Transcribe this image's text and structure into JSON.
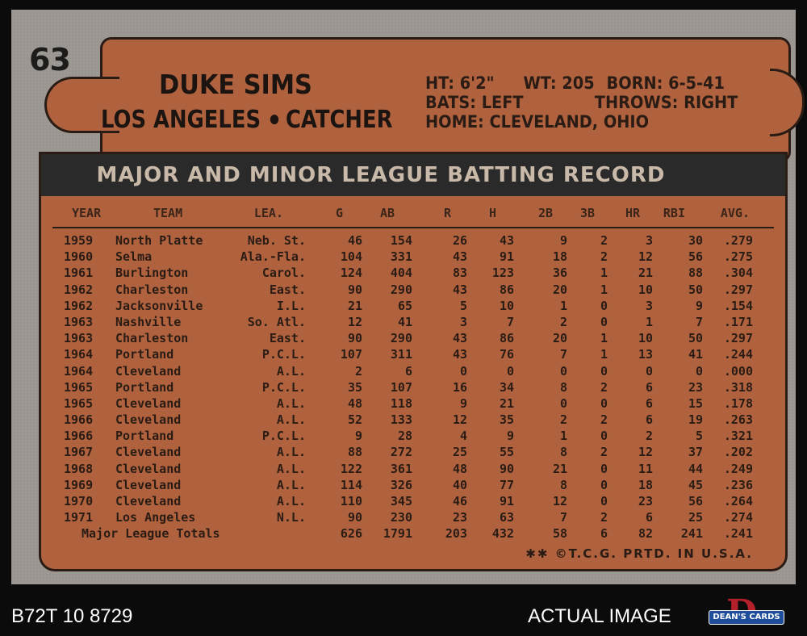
{
  "card": {
    "number": "63",
    "player_name": "DUKE SIMS",
    "team": "LOS ANGELES",
    "position": "CATCHER",
    "bio": {
      "height": "HT: 6'2\"",
      "weight": "WT: 205",
      "born": "BORN: 6-5-41",
      "bats": "BATS: LEFT",
      "throws": "THROWS: RIGHT",
      "home": "HOME: CLEVELAND, OHIO"
    },
    "record_title": "MAJOR AND MINOR LEAGUE BATTING RECORD",
    "columns": [
      "YEAR",
      "TEAM",
      "LEA.",
      "G",
      "AB",
      "R",
      "H",
      "2B",
      "3B",
      "HR",
      "RBI",
      "AVG."
    ],
    "rows": [
      [
        "1959",
        "North Platte",
        "Neb. St.",
        "46",
        "154",
        "26",
        "43",
        "9",
        "2",
        "3",
        "30",
        ".279"
      ],
      [
        "1960",
        "Selma",
        "Ala.-Fla.",
        "104",
        "331",
        "43",
        "91",
        "18",
        "2",
        "12",
        "56",
        ".275"
      ],
      [
        "1961",
        "Burlington",
        "Carol.",
        "124",
        "404",
        "83",
        "123",
        "36",
        "1",
        "21",
        "88",
        ".304"
      ],
      [
        "1962",
        "Charleston",
        "East.",
        "90",
        "290",
        "43",
        "86",
        "20",
        "1",
        "10",
        "50",
        ".297"
      ],
      [
        "1962",
        "Jacksonville",
        "I.L.",
        "21",
        "65",
        "5",
        "10",
        "1",
        "0",
        "3",
        "9",
        ".154"
      ],
      [
        "1963",
        "Nashville",
        "So. Atl.",
        "12",
        "41",
        "3",
        "7",
        "2",
        "0",
        "1",
        "7",
        ".171"
      ],
      [
        "1963",
        "Charleston",
        "East.",
        "90",
        "290",
        "43",
        "86",
        "20",
        "1",
        "10",
        "50",
        ".297"
      ],
      [
        "1964",
        "Portland",
        "P.C.L.",
        "107",
        "311",
        "43",
        "76",
        "7",
        "1",
        "13",
        "41",
        ".244"
      ],
      [
        "1964",
        "Cleveland",
        "A.L.",
        "2",
        "6",
        "0",
        "0",
        "0",
        "0",
        "0",
        "0",
        ".000"
      ],
      [
        "1965",
        "Portland",
        "P.C.L.",
        "35",
        "107",
        "16",
        "34",
        "8",
        "2",
        "6",
        "23",
        ".318"
      ],
      [
        "1965",
        "Cleveland",
        "A.L.",
        "48",
        "118",
        "9",
        "21",
        "0",
        "0",
        "6",
        "15",
        ".178"
      ],
      [
        "1966",
        "Cleveland",
        "A.L.",
        "52",
        "133",
        "12",
        "35",
        "2",
        "2",
        "6",
        "19",
        ".263"
      ],
      [
        "1966",
        "Portland",
        "P.C.L.",
        "9",
        "28",
        "4",
        "9",
        "1",
        "0",
        "2",
        "5",
        ".321"
      ],
      [
        "1967",
        "Cleveland",
        "A.L.",
        "88",
        "272",
        "25",
        "55",
        "8",
        "2",
        "12",
        "37",
        ".202"
      ],
      [
        "1968",
        "Cleveland",
        "A.L.",
        "122",
        "361",
        "48",
        "90",
        "21",
        "0",
        "11",
        "44",
        ".249"
      ],
      [
        "1969",
        "Cleveland",
        "A.L.",
        "114",
        "326",
        "40",
        "77",
        "8",
        "0",
        "18",
        "45",
        ".236"
      ],
      [
        "1970",
        "Cleveland",
        "A.L.",
        "110",
        "345",
        "46",
        "91",
        "12",
        "0",
        "23",
        "56",
        ".264"
      ],
      [
        "1971",
        "Los Angeles",
        "N.L.",
        "90",
        "230",
        "23",
        "63",
        "7",
        "2",
        "6",
        "25",
        ".274"
      ]
    ],
    "totals": {
      "label": "Major League Totals",
      "values": [
        "626",
        "1791",
        "203",
        "432",
        "58",
        "6",
        "82",
        "241",
        ".241"
      ]
    },
    "footer": "✱✱ ©T.C.G. PRTD. IN U.S.A."
  },
  "caption": {
    "cert_id": "B72T 10 8729",
    "label": "ACTUAL IMAGE",
    "logo_text": "DEAN'S CARDS",
    "logo_letter": "D"
  },
  "colors": {
    "card_border": "#9a9590",
    "panel": "#b0623e",
    "title_bar": "#2a2a2a",
    "ink": "#2a1c14",
    "logo_red": "#b3202a",
    "logo_blue": "#1f4e9a"
  }
}
